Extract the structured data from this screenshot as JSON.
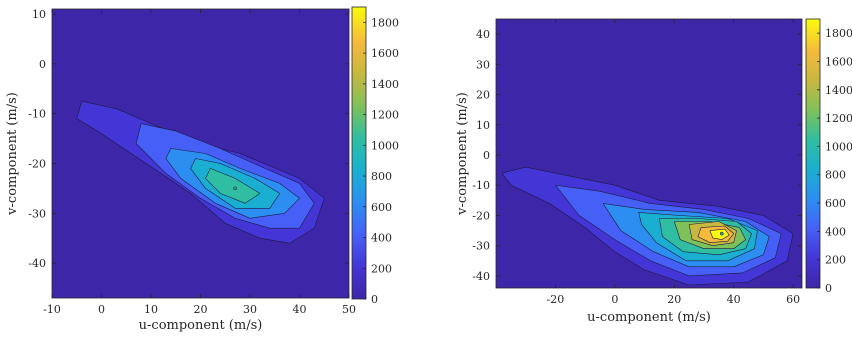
{
  "chart_data": [
    {
      "type": "heatmap",
      "subtype": "filled-contour",
      "xlabel": "u-component (m/s)",
      "ylabel": "v-component (m/s)",
      "xlim": [
        -10,
        50
      ],
      "ylim": [
        -47,
        11
      ],
      "xticks": [
        -10,
        0,
        10,
        20,
        30,
        40,
        50
      ],
      "yticks": [
        10,
        0,
        -10,
        -20,
        -30,
        -40
      ],
      "colorbar": {
        "min": 0,
        "max": 1900,
        "ticks": [
          0,
          200,
          400,
          600,
          800,
          1000,
          1200,
          1400,
          1600,
          1800
        ]
      },
      "peak": {
        "u": 27,
        "v": -25,
        "count": 1000
      },
      "contour_levels": [
        {
          "level": 0,
          "color": "#3e26a8",
          "points": [
            [
              -10,
              -47
            ],
            [
              50,
              -47
            ],
            [
              50,
              11
            ],
            [
              -10,
              11
            ]
          ]
        },
        {
          "level": 200,
          "color": "#4436d6",
          "points": [
            [
              -4,
              -7.5
            ],
            [
              3,
              -9
            ],
            [
              10,
              -12
            ],
            [
              20,
              -16
            ],
            [
              28,
              -18
            ],
            [
              40,
              -23
            ],
            [
              45,
              -27
            ],
            [
              43,
              -33
            ],
            [
              38,
              -36
            ],
            [
              32,
              -35
            ],
            [
              25,
              -32
            ],
            [
              18,
              -26
            ],
            [
              12,
              -22
            ],
            [
              6,
              -18
            ],
            [
              0,
              -14
            ],
            [
              -5,
              -11
            ]
          ]
        },
        {
          "level": 400,
          "color": "#4660f7",
          "points": [
            [
              8,
              -12
            ],
            [
              15,
              -13.5
            ],
            [
              24,
              -17
            ],
            [
              33,
              -21
            ],
            [
              40,
              -24
            ],
            [
              43,
              -28
            ],
            [
              40,
              -33
            ],
            [
              34,
              -33
            ],
            [
              27,
              -31
            ],
            [
              20,
              -27
            ],
            [
              13,
              -22
            ],
            [
              7,
              -16
            ]
          ]
        },
        {
          "level": 600,
          "color": "#2c8ef0",
          "points": [
            [
              14,
              -17
            ],
            [
              21,
              -18
            ],
            [
              28,
              -21
            ],
            [
              36,
              -24
            ],
            [
              40,
              -27
            ],
            [
              37,
              -30
            ],
            [
              30,
              -31
            ],
            [
              23,
              -28
            ],
            [
              16,
              -23
            ],
            [
              13,
              -19
            ]
          ]
        },
        {
          "level": 800,
          "color": "#1aafd0",
          "points": [
            [
              19,
              -19
            ],
            [
              24,
              -20
            ],
            [
              31,
              -23
            ],
            [
              36,
              -26
            ],
            [
              34,
              -29
            ],
            [
              27,
              -29
            ],
            [
              21,
              -25
            ],
            [
              18,
              -21
            ]
          ]
        },
        {
          "level": 1000,
          "color": "#2fbea2",
          "points": [
            [
              22,
              -21
            ],
            [
              27,
              -23
            ],
            [
              32,
              -26
            ],
            [
              29,
              -28
            ],
            [
              24,
              -26
            ],
            [
              21,
              -23
            ]
          ]
        }
      ]
    },
    {
      "type": "heatmap",
      "subtype": "filled-contour",
      "xlabel": "u-component (m/s)",
      "ylabel": "v-component (m/s)",
      "xlim": [
        -40,
        63
      ],
      "ylim": [
        -44,
        45
      ],
      "xticks": [
        -20,
        0,
        20,
        40,
        60
      ],
      "yticks": [
        40,
        30,
        20,
        10,
        0,
        -10,
        -20,
        -30,
        -40
      ],
      "colorbar": {
        "min": 0,
        "max": 1900,
        "ticks": [
          0,
          200,
          400,
          600,
          800,
          1000,
          1200,
          1400,
          1600,
          1800
        ]
      },
      "peak": {
        "u": 36,
        "v": -26,
        "count": 1850
      },
      "contour_levels": [
        {
          "level": 0,
          "color": "#3e26a8",
          "points": [
            [
              -40,
              -44
            ],
            [
              63,
              -44
            ],
            [
              63,
              45
            ],
            [
              -40,
              45
            ]
          ]
        },
        {
          "level": 200,
          "color": "#4436d6",
          "points": [
            [
              -38,
              -6
            ],
            [
              -30,
              -4
            ],
            [
              -15,
              -7
            ],
            [
              0,
              -10
            ],
            [
              15,
              -15
            ],
            [
              35,
              -17
            ],
            [
              50,
              -20
            ],
            [
              60,
              -26
            ],
            [
              58,
              -35
            ],
            [
              45,
              -42
            ],
            [
              25,
              -43
            ],
            [
              10,
              -38
            ],
            [
              0,
              -32
            ],
            [
              -10,
              -24
            ],
            [
              -22,
              -16
            ],
            [
              -35,
              -10
            ]
          ]
        },
        {
          "level": 400,
          "color": "#4660f7",
          "points": [
            [
              -20,
              -10
            ],
            [
              -5,
              -12
            ],
            [
              12,
              -16
            ],
            [
              30,
              -18
            ],
            [
              45,
              -21
            ],
            [
              56,
              -26
            ],
            [
              54,
              -34
            ],
            [
              43,
              -39
            ],
            [
              25,
              -40
            ],
            [
              12,
              -35
            ],
            [
              0,
              -28
            ],
            [
              -12,
              -20
            ]
          ]
        },
        {
          "level": 600,
          "color": "#2c8ef0",
          "points": [
            [
              -4,
              -16
            ],
            [
              10,
              -18
            ],
            [
              28,
              -19
            ],
            [
              44,
              -22
            ],
            [
              52,
              -27
            ],
            [
              50,
              -33
            ],
            [
              40,
              -37
            ],
            [
              25,
              -37
            ],
            [
              13,
              -32
            ],
            [
              2,
              -25
            ]
          ]
        },
        {
          "level": 800,
          "color": "#1aafd0",
          "points": [
            [
              8,
              -19
            ],
            [
              22,
              -20
            ],
            [
              38,
              -21
            ],
            [
              48,
              -25
            ],
            [
              47,
              -31
            ],
            [
              38,
              -35
            ],
            [
              24,
              -35
            ],
            [
              14,
              -29
            ],
            [
              9,
              -23
            ]
          ]
        },
        {
          "level": 1000,
          "color": "#2fbea2",
          "points": [
            [
              15,
              -21
            ],
            [
              28,
              -21
            ],
            [
              41,
              -22
            ],
            [
              46,
              -26
            ],
            [
              44,
              -31
            ],
            [
              35,
              -33
            ],
            [
              23,
              -32
            ],
            [
              16,
              -27
            ]
          ]
        },
        {
          "level": 1200,
          "color": "#7ec15b",
          "points": [
            [
              20,
              -22
            ],
            [
              32,
              -22
            ],
            [
              42,
              -24
            ],
            [
              44,
              -28
            ],
            [
              40,
              -31
            ],
            [
              30,
              -31
            ],
            [
              22,
              -28
            ]
          ]
        },
        {
          "level": 1400,
          "color": "#c8b83f",
          "points": [
            [
              25,
              -23
            ],
            [
              35,
              -22
            ],
            [
              41,
              -25
            ],
            [
              40,
              -29
            ],
            [
              33,
              -30
            ],
            [
              26,
              -28
            ]
          ]
        },
        {
          "level": 1600,
          "color": "#f5ba3c",
          "points": [
            [
              29,
              -24
            ],
            [
              37,
              -23.5
            ],
            [
              40,
              -26
            ],
            [
              38,
              -28.5
            ],
            [
              32,
              -29
            ],
            [
              28,
              -27
            ]
          ]
        },
        {
          "level": 1800,
          "color": "#f9fb0e",
          "points": [
            [
              32,
              -25
            ],
            [
              37,
              -24.5
            ],
            [
              38.5,
              -26.5
            ],
            [
              36,
              -28
            ],
            [
              33,
              -27.5
            ]
          ]
        }
      ]
    }
  ]
}
